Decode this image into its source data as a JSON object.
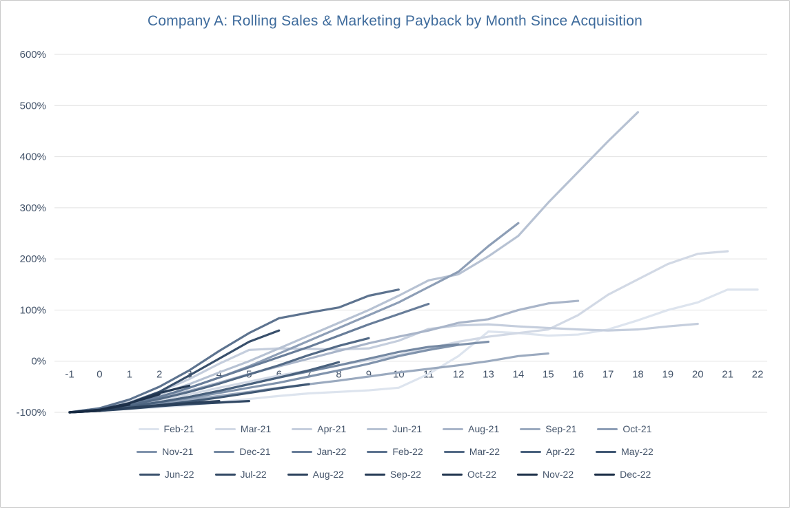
{
  "styles": {
    "title_color": "#3e6b9c",
    "axis_label_color": "#44546a",
    "gridline_color": "#e2e2e2",
    "border_color": "#c9c9c9",
    "background": "#ffffff"
  },
  "chart_data": {
    "type": "line",
    "title": "Company A: Rolling Sales & Marketing Payback by Month Since Acquisition",
    "xlabel": "",
    "ylabel": "",
    "legend_position": "bottom",
    "grid": "horizontal",
    "ylim": [
      -100,
      600
    ],
    "y_tick_format": "percent",
    "y_ticks": [
      {
        "value": 600,
        "label": "600%"
      },
      {
        "value": 500,
        "label": "500%"
      },
      {
        "value": 400,
        "label": "400%"
      },
      {
        "value": 300,
        "label": "300%"
      },
      {
        "value": 200,
        "label": "200%"
      },
      {
        "value": 100,
        "label": "100%"
      },
      {
        "value": 0,
        "label": "0%"
      },
      {
        "value": -100,
        "label": "-100%"
      }
    ],
    "x_ticks": [
      -1,
      0,
      1,
      2,
      3,
      4,
      5,
      6,
      7,
      8,
      9,
      10,
      11,
      12,
      13,
      14,
      15,
      16,
      17,
      18,
      19,
      20,
      21,
      22
    ],
    "x_axis_note": "months since acquisition, all series start at month -1 at -100%",
    "series": [
      {
        "name": "Feb-21",
        "color": "#dde4ee",
        "values": [
          -100,
          -97,
          -93,
          -90,
          -86,
          -80,
          -74,
          -68,
          -63,
          -60,
          -57,
          -52,
          -25,
          10,
          58,
          55,
          50,
          52,
          62,
          80,
          100,
          115,
          140,
          140
        ]
      },
      {
        "name": "Mar-21",
        "color": "#d2d9e5",
        "values": [
          -100,
          -95,
          -88,
          -78,
          -65,
          -52,
          -40,
          -28,
          -18,
          -8,
          2,
          12,
          25,
          38,
          48,
          55,
          62,
          90,
          130,
          160,
          190,
          210,
          215
        ]
      },
      {
        "name": "Apr-21",
        "color": "#c5cedd",
        "values": [
          -100,
          -92,
          -80,
          -60,
          -35,
          -5,
          22,
          25,
          24,
          23,
          25,
          40,
          63,
          70,
          72,
          68,
          65,
          62,
          60,
          62,
          68,
          73
        ]
      },
      {
        "name": "Jun-21",
        "color": "#b7c2d3",
        "values": [
          -100,
          -93,
          -82,
          -65,
          -45,
          -22,
          0,
          25,
          50,
          75,
          100,
          128,
          158,
          170,
          205,
          245,
          310,
          370,
          430,
          487
        ]
      },
      {
        "name": "Aug-21",
        "color": "#a9b5c9",
        "values": [
          -100,
          -94,
          -85,
          -72,
          -58,
          -42,
          -25,
          -10,
          5,
          20,
          35,
          48,
          60,
          75,
          82,
          100,
          113,
          118
        ]
      },
      {
        "name": "Sep-21",
        "color": "#9baabf",
        "values": [
          -100,
          -96,
          -90,
          -83,
          -75,
          -68,
          -60,
          -52,
          -45,
          -38,
          -30,
          -22,
          -15,
          -8,
          0,
          10,
          15
        ]
      },
      {
        "name": "Oct-21",
        "color": "#8d9eb6",
        "values": [
          -100,
          -95,
          -85,
          -70,
          -52,
          -32,
          -10,
          15,
          40,
          65,
          90,
          115,
          145,
          175,
          225,
          270
        ]
      },
      {
        "name": "Nov-21",
        "color": "#8093ac",
        "values": [
          -100,
          -96,
          -90,
          -82,
          -72,
          -62,
          -52,
          -42,
          -30,
          -18,
          -5,
          10,
          22,
          32,
          38
        ]
      },
      {
        "name": "Dec-21",
        "color": "#7488a2",
        "values": [
          -100,
          -95,
          -88,
          -80,
          -70,
          -58,
          -45,
          -32,
          -20,
          -8,
          5,
          18,
          28,
          33
        ]
      },
      {
        "name": "Jan-22",
        "color": "#687d99",
        "values": [
          -100,
          -94,
          -84,
          -70,
          -52,
          -32,
          -12,
          8,
          28,
          50,
          72,
          92,
          112
        ]
      },
      {
        "name": "Feb-22",
        "color": "#5d738f",
        "values": [
          -100,
          -92,
          -75,
          -50,
          -18,
          20,
          55,
          84,
          95,
          105,
          128,
          140
        ]
      },
      {
        "name": "Mar-22",
        "color": "#536a86",
        "values": [
          -100,
          -95,
          -86,
          -74,
          -60,
          -44,
          -26,
          -8,
          12,
          30,
          45
        ]
      },
      {
        "name": "Apr-22",
        "color": "#49617d",
        "values": [
          -100,
          -96,
          -89,
          -80,
          -70,
          -58,
          -45,
          -32,
          -18,
          -2
        ]
      },
      {
        "name": "May-22",
        "color": "#405874",
        "values": [
          -100,
          -97,
          -92,
          -86,
          -79,
          -71,
          -62,
          -53,
          -45
        ]
      },
      {
        "name": "Jun-22",
        "color": "#384f6b",
        "values": [
          -100,
          -95,
          -82,
          -60,
          -28,
          5,
          38,
          60
        ]
      },
      {
        "name": "Jul-22",
        "color": "#304763",
        "values": [
          -100,
          -97,
          -93,
          -88,
          -84,
          -81,
          -78
        ]
      },
      {
        "name": "Aug-22",
        "color": "#2a405b",
        "values": [
          -100,
          -96,
          -91,
          -86,
          -82,
          -78
        ]
      },
      {
        "name": "Sep-22",
        "color": "#243954",
        "values": [
          -100,
          -95,
          -82,
          -62,
          -48
        ]
      },
      {
        "name": "Oct-22",
        "color": "#1f334d",
        "values": [
          -100,
          -96,
          -82,
          -65
        ]
      },
      {
        "name": "Nov-22",
        "color": "#1b2e47",
        "values": [
          -100,
          -95,
          -85
        ]
      },
      {
        "name": "Dec-22",
        "color": "#172a42",
        "values": [
          -100,
          -97
        ]
      }
    ]
  }
}
